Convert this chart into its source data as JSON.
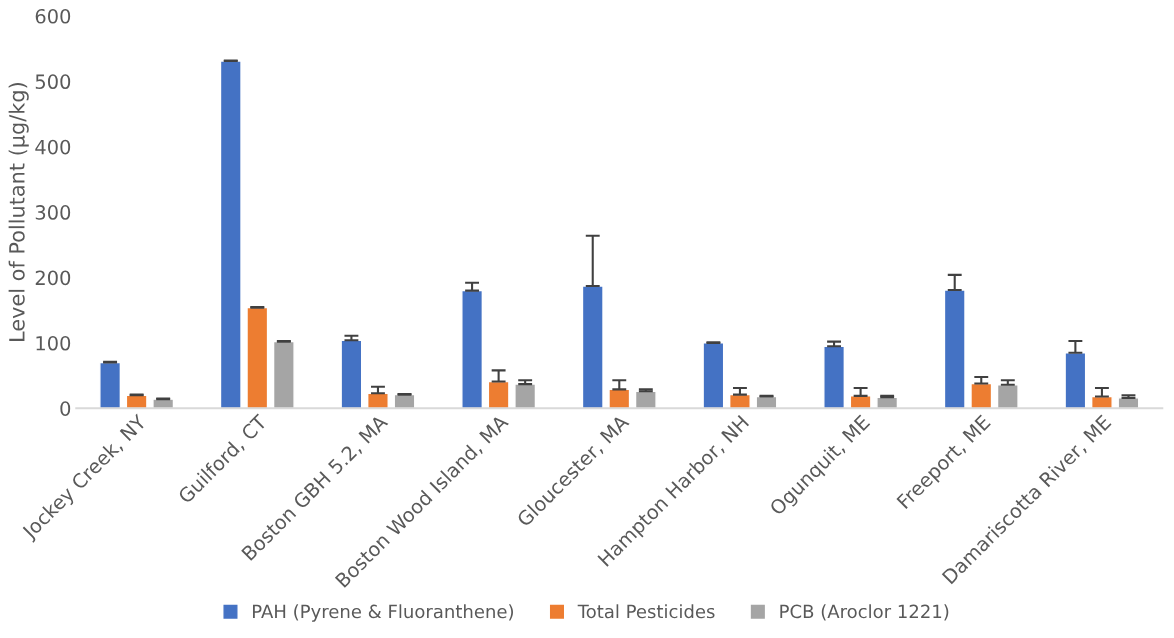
{
  "chart_data": {
    "type": "bar",
    "ylabel": "Level of Pollutant (µg/kg)",
    "categories": [
      "Jockey Creek, NY",
      "Guilford, CT",
      "Boston GBH 5.2, MA",
      "Boston Wood Island, MA",
      "Gloucester, MA",
      "Hampton Harbor, NH",
      "Ogunquit, ME",
      "Freeport, ME",
      "Damariscotta River, ME"
    ],
    "series": [
      {
        "name": "PAH (Pyrene & Fluoranthene)",
        "color": "#4472c4",
        "values": [
          70,
          531,
          104,
          180,
          187,
          100,
          95,
          181,
          85
        ],
        "errors": [
          [
            70,
            71
          ],
          [
            531,
            532
          ],
          [
            104,
            111
          ],
          [
            180,
            192
          ],
          [
            187,
            264
          ],
          [
            100,
            101
          ],
          [
            95,
            102
          ],
          [
            181,
            204
          ],
          [
            85,
            103
          ]
        ]
      },
      {
        "name": "Total Pesticides",
        "color": "#ed7d31",
        "values": [
          20,
          154,
          23,
          41,
          29,
          21,
          19,
          38,
          18
        ],
        "errors": [
          [
            20,
            21
          ],
          [
            154,
            155
          ],
          [
            23,
            33
          ],
          [
            41,
            58
          ],
          [
            29,
            43
          ],
          [
            21,
            31
          ],
          [
            19,
            31
          ],
          [
            38,
            48
          ],
          [
            18,
            31
          ]
        ]
      },
      {
        "name": "PCB (Aroclor 1221)",
        "color": "#a5a5a5",
        "values": [
          14,
          102,
          21,
          37,
          26,
          18,
          17,
          36,
          16
        ],
        "errors": [
          [
            14,
            15
          ],
          [
            102,
            103
          ],
          [
            21,
            22
          ],
          [
            37,
            43
          ],
          [
            26,
            29
          ],
          [
            18,
            19
          ],
          [
            17,
            19
          ],
          [
            36,
            43
          ],
          [
            16,
            20
          ]
        ]
      }
    ],
    "ylim": [
      0,
      600
    ],
    "yticks": [
      0,
      100,
      200,
      300,
      400,
      500,
      600
    ],
    "grid": false,
    "legend": "bottom"
  }
}
